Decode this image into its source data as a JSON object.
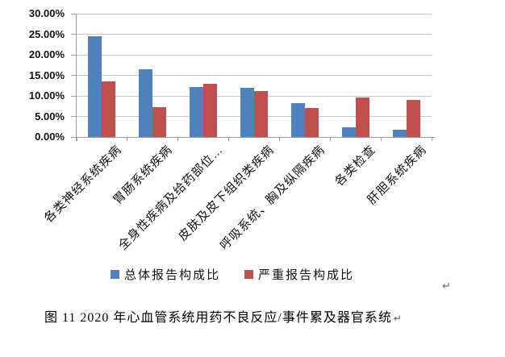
{
  "figure": {
    "caption": "图 11  2020 年心血管系统用药不良反应/事件累及器官系统",
    "paragraph_mark": "↵"
  },
  "chart_data": {
    "type": "bar",
    "title": "",
    "xlabel": "",
    "ylabel": "",
    "categories": [
      "各类神经系统疾病",
      "胃肠系统疾病",
      "全身性疾病及给药部位…",
      "皮肤及皮下组织类疾病",
      "呼吸系统、胸及纵隔疾病",
      "各类检查",
      "肝胆系统疾病"
    ],
    "series": [
      {
        "name": "总体报告构成比",
        "color": "#4F81BD",
        "values": [
          24.5,
          16.4,
          12.2,
          11.9,
          8.3,
          2.4,
          1.8
        ]
      },
      {
        "name": "严重报告构成比",
        "color": "#C0504D",
        "values": [
          13.5,
          7.2,
          13.0,
          11.2,
          7.1,
          9.6,
          9.0
        ]
      }
    ],
    "ylim": [
      0,
      30
    ],
    "ytick_step": 5,
    "ytick_labels": [
      "0.00%",
      "5.00%",
      "10.00%",
      "15.00%",
      "20.00%",
      "25.00%",
      "30.00%"
    ],
    "grid": true,
    "legend_position": "bottom"
  },
  "colors": {
    "series_total": "#4F81BD",
    "series_serious": "#C0504D",
    "gridline": "#C7C7C7",
    "axis": "#9B9B9B"
  }
}
